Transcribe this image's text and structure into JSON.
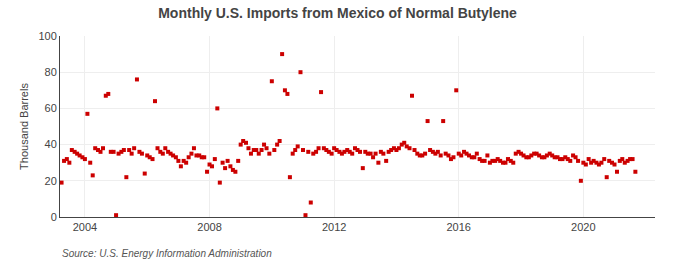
{
  "chart_data": {
    "type": "scatter",
    "title": "Monthly U.S. Imports from Mexico of Normal Butylene",
    "y_label": "Thousand Barrels",
    "annotations": [
      "Source: U.S. Energy Information Administration"
    ],
    "color": "#cc0000",
    "marker": "square",
    "grid": true,
    "xlim": [
      2003.2,
      2022.3
    ],
    "xticks": [
      2004,
      2008,
      2012,
      2016,
      2020
    ],
    "ylim": [
      0,
      100
    ],
    "yticks": [
      0,
      20,
      40,
      60,
      80,
      100
    ],
    "x": [
      2003.25,
      2003.33,
      2003.42,
      2003.5,
      2003.58,
      2003.67,
      2003.75,
      2003.83,
      2003.92,
      2004.0,
      2004.08,
      2004.17,
      2004.25,
      2004.33,
      2004.42,
      2004.5,
      2004.58,
      2004.67,
      2004.75,
      2004.83,
      2004.92,
      2005.0,
      2005.08,
      2005.17,
      2005.25,
      2005.33,
      2005.42,
      2005.5,
      2005.58,
      2005.67,
      2005.75,
      2005.83,
      2005.92,
      2006.0,
      2006.08,
      2006.17,
      2006.25,
      2006.33,
      2006.42,
      2006.5,
      2006.58,
      2006.67,
      2006.75,
      2006.83,
      2006.92,
      2007.0,
      2007.08,
      2007.17,
      2007.25,
      2007.33,
      2007.42,
      2007.5,
      2007.58,
      2007.67,
      2007.75,
      2007.83,
      2007.92,
      2008.0,
      2008.08,
      2008.17,
      2008.25,
      2008.33,
      2008.42,
      2008.5,
      2008.58,
      2008.67,
      2008.75,
      2008.83,
      2008.92,
      2009.0,
      2009.08,
      2009.17,
      2009.25,
      2009.33,
      2009.42,
      2009.5,
      2009.58,
      2009.67,
      2009.75,
      2009.83,
      2009.92,
      2010.0,
      2010.08,
      2010.17,
      2010.25,
      2010.33,
      2010.42,
      2010.5,
      2010.58,
      2010.67,
      2010.75,
      2010.83,
      2010.92,
      2011.0,
      2011.08,
      2011.17,
      2011.25,
      2011.33,
      2011.42,
      2011.5,
      2011.58,
      2011.67,
      2011.75,
      2011.83,
      2011.92,
      2012.0,
      2012.08,
      2012.17,
      2012.25,
      2012.33,
      2012.42,
      2012.5,
      2012.58,
      2012.67,
      2012.75,
      2012.83,
      2012.92,
      2013.0,
      2013.08,
      2013.17,
      2013.25,
      2013.33,
      2013.42,
      2013.5,
      2013.58,
      2013.67,
      2013.75,
      2013.83,
      2013.92,
      2014.0,
      2014.08,
      2014.17,
      2014.25,
      2014.33,
      2014.42,
      2014.5,
      2014.58,
      2014.67,
      2014.75,
      2014.83,
      2014.92,
      2015.0,
      2015.08,
      2015.17,
      2015.25,
      2015.33,
      2015.42,
      2015.5,
      2015.58,
      2015.67,
      2015.75,
      2015.83,
      2015.92,
      2016.0,
      2016.08,
      2016.17,
      2016.25,
      2016.33,
      2016.42,
      2016.5,
      2016.58,
      2016.67,
      2016.75,
      2016.83,
      2016.92,
      2017.0,
      2017.08,
      2017.17,
      2017.25,
      2017.33,
      2017.42,
      2017.5,
      2017.58,
      2017.67,
      2017.75,
      2017.83,
      2017.92,
      2018.0,
      2018.08,
      2018.17,
      2018.25,
      2018.33,
      2018.42,
      2018.5,
      2018.58,
      2018.67,
      2018.75,
      2018.83,
      2018.92,
      2019.0,
      2019.08,
      2019.17,
      2019.25,
      2019.33,
      2019.42,
      2019.5,
      2019.58,
      2019.67,
      2019.75,
      2019.83,
      2019.92,
      2020.0,
      2020.08,
      2020.17,
      2020.25,
      2020.33,
      2020.42,
      2020.5,
      2020.58,
      2020.67,
      2020.75,
      2020.83,
      2020.92,
      2021.0,
      2021.08,
      2021.17,
      2021.25,
      2021.33,
      2021.42,
      2021.5,
      2021.58,
      2021.67
    ],
    "values": [
      19,
      31,
      32,
      30,
      37,
      36,
      35,
      34,
      33,
      32,
      57,
      30,
      23,
      38,
      37,
      36,
      38,
      67,
      68,
      36,
      36,
      1,
      35,
      36,
      37,
      22,
      37,
      35,
      38,
      76,
      36,
      35,
      24,
      34,
      33,
      32,
      64,
      38,
      36,
      35,
      38,
      36,
      35,
      34,
      33,
      31,
      28,
      31,
      30,
      33,
      35,
      38,
      34,
      34,
      33,
      33,
      25,
      29,
      28,
      32,
      60,
      19,
      30,
      27,
      31,
      28,
      26,
      25,
      31,
      40,
      42,
      41,
      38,
      35,
      37,
      37,
      35,
      37,
      40,
      38,
      35,
      75,
      37,
      40,
      42,
      90,
      70,
      68,
      22,
      35,
      37,
      39,
      80,
      37,
      1,
      36,
      8,
      35,
      36,
      38,
      69,
      38,
      37,
      36,
      35,
      38,
      37,
      36,
      35,
      36,
      37,
      36,
      35,
      38,
      37,
      36,
      27,
      36,
      35,
      35,
      33,
      35,
      30,
      36,
      35,
      31,
      36,
      37,
      38,
      37,
      38,
      40,
      41,
      39,
      38,
      67,
      37,
      35,
      34,
      34,
      35,
      53,
      37,
      36,
      35,
      36,
      34,
      53,
      35,
      34,
      32,
      33,
      70,
      35,
      34,
      36,
      35,
      34,
      33,
      33,
      35,
      32,
      31,
      31,
      34,
      30,
      31,
      31,
      32,
      31,
      30,
      30,
      32,
      31,
      30,
      35,
      36,
      35,
      34,
      33,
      33,
      34,
      35,
      35,
      34,
      33,
      33,
      34,
      35,
      34,
      33,
      33,
      32,
      32,
      33,
      32,
      31,
      34,
      33,
      31,
      20,
      30,
      29,
      32,
      30,
      31,
      30,
      29,
      30,
      32,
      22,
      31,
      30,
      29,
      25,
      31,
      32,
      30,
      31,
      32,
      32,
      25
    ]
  }
}
